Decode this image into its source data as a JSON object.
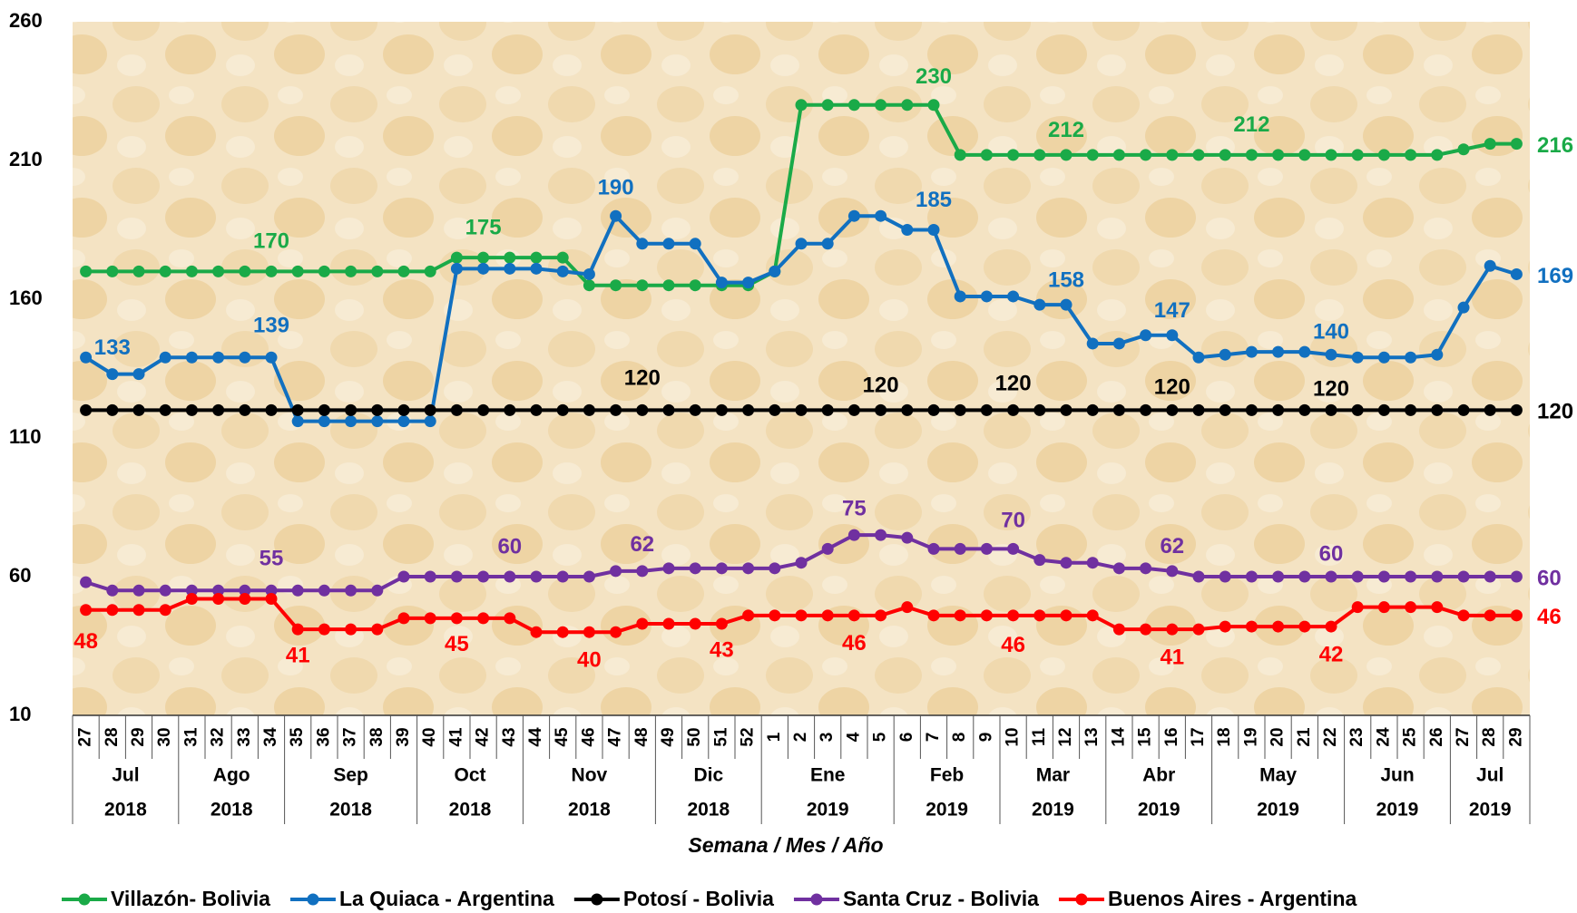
{
  "chart_data": {
    "type": "line",
    "x_label": "Semana / Mes / Año",
    "categories": [
      "27",
      "28",
      "29",
      "30",
      "31",
      "32",
      "33",
      "34",
      "35",
      "36",
      "37",
      "38",
      "39",
      "40",
      "41",
      "42",
      "43",
      "44",
      "45",
      "46",
      "47",
      "48",
      "49",
      "50",
      "51",
      "52",
      "1",
      "2",
      "3",
      "4",
      "5",
      "6",
      "7",
      "8",
      "9",
      "10",
      "11",
      "12",
      "13",
      "14",
      "15",
      "16",
      "17",
      "18",
      "19",
      "20",
      "21",
      "22",
      "23",
      "24",
      "25",
      "26",
      "27",
      "28",
      "29"
    ],
    "category_months": [
      "Jul",
      "Jul",
      "Jul",
      "Jul",
      "Ago",
      "Ago",
      "Ago",
      "Ago",
      "Sep",
      "Sep",
      "Sep",
      "Sep",
      "Sep",
      "Oct",
      "Oct",
      "Oct",
      "Oct",
      "Nov",
      "Nov",
      "Nov",
      "Nov",
      "Nov",
      "Dic",
      "Dic",
      "Dic",
      "Dic",
      "Ene",
      "Ene",
      "Ene",
      "Ene",
      "Ene",
      "Feb",
      "Feb",
      "Feb",
      "Feb",
      "Mar",
      "Mar",
      "Mar",
      "Mar",
      "Abr",
      "Abr",
      "Abr",
      "Abr",
      "May",
      "May",
      "May",
      "May",
      "May",
      "Jun",
      "Jun",
      "Jun",
      "Jun",
      "Jul",
      "Jul",
      "Jul"
    ],
    "category_years": [
      "2018",
      "2018",
      "2018",
      "2018",
      "2018",
      "2018",
      "2018",
      "2018",
      "2018",
      "2018",
      "2018",
      "2018",
      "2018",
      "2018",
      "2018",
      "2018",
      "2018",
      "2018",
      "2018",
      "2018",
      "2018",
      "2018",
      "2018",
      "2018",
      "2018",
      "2018",
      "2019",
      "2019",
      "2019",
      "2019",
      "2019",
      "2019",
      "2019",
      "2019",
      "2019",
      "2019",
      "2019",
      "2019",
      "2019",
      "2019",
      "2019",
      "2019",
      "2019",
      "2019",
      "2019",
      "2019",
      "2019",
      "2019",
      "2019",
      "2019",
      "2019",
      "2019",
      "2019",
      "2019",
      "2019"
    ],
    "ylim": [
      10,
      260
    ],
    "yticks": [
      10,
      60,
      110,
      160,
      210,
      260
    ],
    "series": [
      {
        "name": "Villazón- Bolivia",
        "color": "#1aaa48",
        "values": [
          170,
          170,
          170,
          170,
          170,
          170,
          170,
          170,
          170,
          170,
          170,
          170,
          170,
          170,
          175,
          175,
          175,
          175,
          175,
          165,
          165,
          165,
          165,
          165,
          165,
          165,
          170,
          230,
          230,
          230,
          230,
          230,
          230,
          212,
          212,
          212,
          212,
          212,
          212,
          212,
          212,
          212,
          212,
          212,
          212,
          212,
          212,
          212,
          212,
          212,
          212,
          212,
          214,
          216,
          216
        ]
      },
      {
        "name": "La Quiaca - Argentina",
        "color": "#1170c0",
        "values": [
          139,
          133,
          133,
          139,
          139,
          139,
          139,
          139,
          116,
          116,
          116,
          116,
          116,
          116,
          171,
          171,
          171,
          171,
          170,
          169,
          190,
          180,
          180,
          180,
          166,
          166,
          170,
          180,
          180,
          190,
          190,
          185,
          185,
          161,
          161,
          161,
          158,
          158,
          144,
          144,
          147,
          147,
          139,
          140,
          141,
          141,
          141,
          140,
          139,
          139,
          139,
          140,
          157,
          172,
          169
        ]
      },
      {
        "name": "Potosí - Bolivia",
        "color": "#000000",
        "values": [
          120,
          120,
          120,
          120,
          120,
          120,
          120,
          120,
          120,
          120,
          120,
          120,
          120,
          120,
          120,
          120,
          120,
          120,
          120,
          120,
          120,
          120,
          120,
          120,
          120,
          120,
          120,
          120,
          120,
          120,
          120,
          120,
          120,
          120,
          120,
          120,
          120,
          120,
          120,
          120,
          120,
          120,
          120,
          120,
          120,
          120,
          120,
          120,
          120,
          120,
          120,
          120,
          120,
          120,
          120
        ]
      },
      {
        "name": "Santa Cruz - Bolivia",
        "color": "#7030a0",
        "values": [
          58,
          55,
          55,
          55,
          55,
          55,
          55,
          55,
          55,
          55,
          55,
          55,
          60,
          60,
          60,
          60,
          60,
          60,
          60,
          60,
          62,
          62,
          63,
          63,
          63,
          63,
          63,
          65,
          70,
          75,
          75,
          74,
          70,
          70,
          70,
          70,
          66,
          65,
          65,
          63,
          63,
          62,
          60,
          60,
          60,
          60,
          60,
          60,
          60,
          60,
          60,
          60,
          60,
          60,
          60
        ]
      },
      {
        "name": "Buenos Aires - Argentina",
        "color": "#ff0000",
        "values": [
          48,
          48,
          48,
          48,
          52,
          52,
          52,
          52,
          41,
          41,
          41,
          41,
          45,
          45,
          45,
          45,
          45,
          40,
          40,
          40,
          40,
          43,
          43,
          43,
          43,
          46,
          46,
          46,
          46,
          46,
          46,
          49,
          46,
          46,
          46,
          46,
          46,
          46,
          46,
          41,
          41,
          41,
          41,
          42,
          42,
          42,
          42,
          42,
          49,
          49,
          49,
          49,
          46,
          46,
          46
        ]
      }
    ]
  }
}
